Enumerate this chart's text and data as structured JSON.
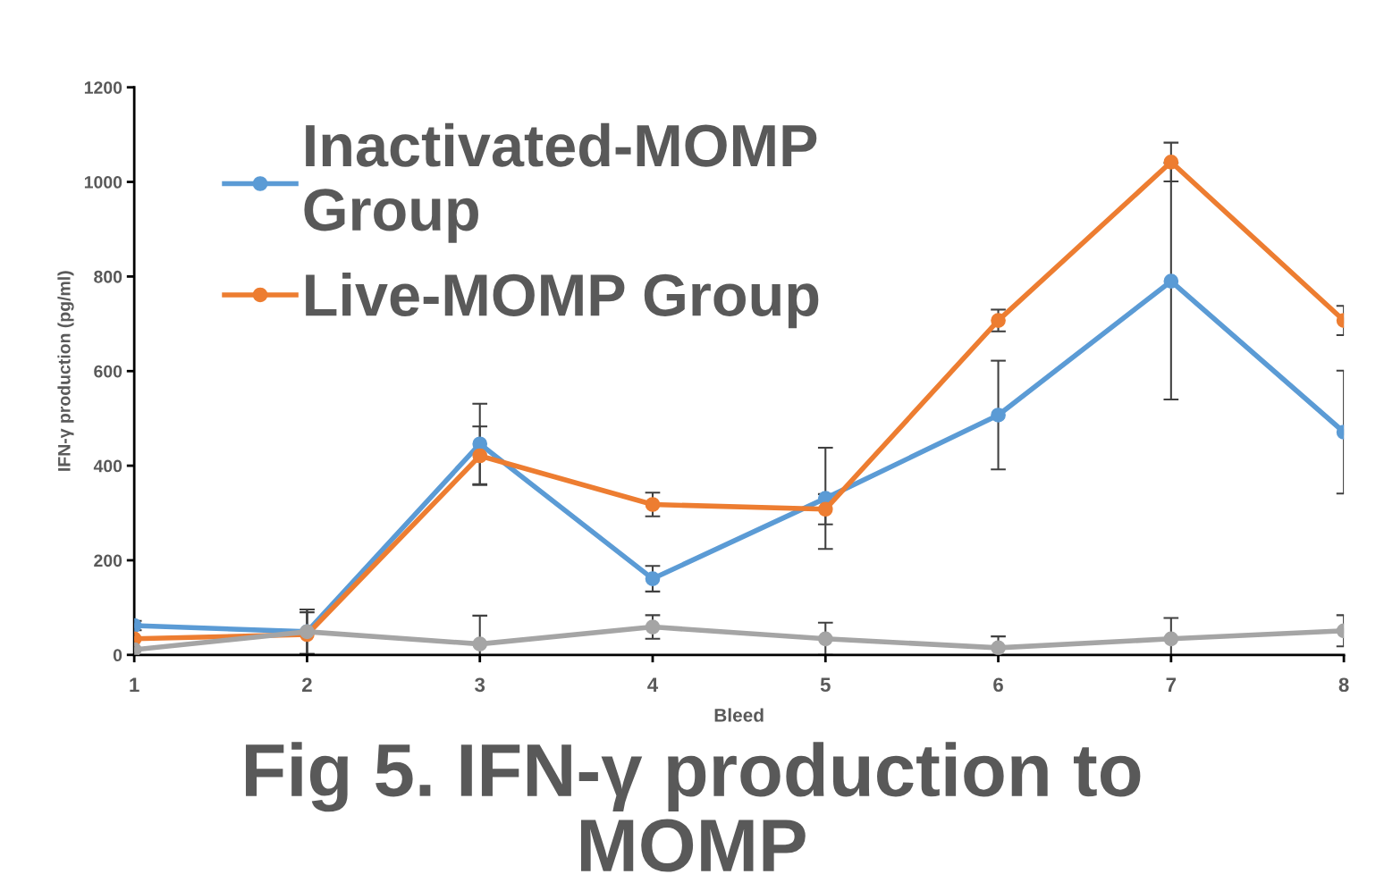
{
  "chart_data": {
    "type": "line",
    "title": "Fig 5. IFN-γ production to\nMOMP",
    "xlabel": "Bleed",
    "ylabel": "IFN-γ production (pg/ml)",
    "x": [
      1,
      2,
      3,
      4,
      5,
      6,
      7,
      8
    ],
    "series": [
      {
        "name": "Inactivated-MOMP\nGroup",
        "color": "#5b9bd5",
        "values": [
          62,
          49,
          446,
          161,
          331,
          507,
          790,
          471
        ],
        "errors": [
          10,
          47,
          85,
          27,
          107,
          115,
          250,
          130
        ]
      },
      {
        "name": "Live-MOMP Group",
        "color": "#ed7d31",
        "values": [
          34,
          43,
          421,
          318,
          308,
          707,
          1042,
          707
        ],
        "errors": [
          null,
          47,
          62,
          25,
          32,
          23,
          41,
          31
        ]
      },
      {
        "color": "#a5a5a5",
        "values": [
          11,
          49,
          23,
          59,
          34,
          15,
          34,
          51
        ],
        "errors": [
          null,
          47,
          60,
          25,
          34,
          24,
          44,
          33
        ]
      }
    ],
    "xlim": [
      1,
      8
    ],
    "xticks": [
      1,
      2,
      3,
      4,
      5,
      6,
      7,
      8
    ],
    "ylim": [
      0,
      1200
    ],
    "yticks": [
      0,
      200,
      400,
      600,
      800,
      1000,
      1200
    ],
    "grid": false,
    "legend": "top left",
    "marker": "circle",
    "line_style": "solid"
  }
}
